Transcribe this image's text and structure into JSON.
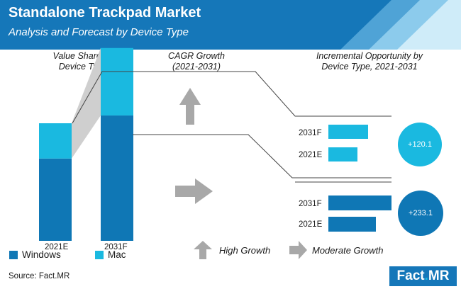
{
  "header": {
    "title": "Standalone Trackpad Market",
    "subtitle": "Analysis and Forecast by Device Type"
  },
  "sections": {
    "value_share": "Value Share by Device Type",
    "cagr": "CAGR Growth (2021-2031)",
    "incremental": "Incremental Opportunity by Device Type, 2021-2031"
  },
  "colors": {
    "windows": "#0f77b5",
    "mac": "#1ab9e0",
    "banner": "#1577b9",
    "connector": "#cfcfcf"
  },
  "legend": {
    "windows": "Windows",
    "mac": "Mac"
  },
  "growth_legend": {
    "high": "High Growth",
    "moderate": "Moderate Growth"
  },
  "source": "Source: Fact.MR",
  "logo": {
    "main": "Fact",
    "dot": ".",
    "suffix": "MR"
  },
  "chart_data": [
    {
      "type": "bar",
      "name": "value_share",
      "categories": [
        "2021E",
        "2031F"
      ],
      "series": [
        {
          "name": "Windows",
          "values": [
            70,
            65
          ]
        },
        {
          "name": "Mac",
          "values": [
            30,
            35
          ]
        }
      ],
      "total_height_relative": [
        1.0,
        1.64
      ]
    },
    {
      "type": "bar",
      "name": "incremental_mac",
      "orientation": "horizontal",
      "categories": [
        "2031F",
        "2021E"
      ],
      "values": [
        56,
        41
      ],
      "badge": "+120.1",
      "cagr_indicator": "high-growth"
    },
    {
      "type": "bar",
      "name": "incremental_windows",
      "orientation": "horizontal",
      "categories": [
        "2031F",
        "2021E"
      ],
      "values": [
        89,
        67
      ],
      "badge": "+233.1",
      "cagr_indicator": "moderate-growth"
    }
  ]
}
